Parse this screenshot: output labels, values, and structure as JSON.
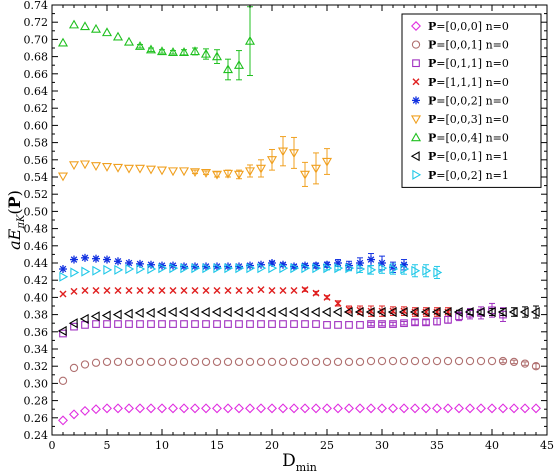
{
  "chart_data": {
    "type": "scatter",
    "title": "",
    "xlabel": "D",
    "xlabel_sub": "min",
    "ylabel_parts": [
      "aE",
      "πK",
      "(",
      "P",
      ")"
    ],
    "xlim": [
      0,
      45
    ],
    "ylim": [
      0.24,
      0.74
    ],
    "xticks": [
      0,
      5,
      10,
      15,
      20,
      25,
      30,
      35,
      40,
      45
    ],
    "yticks": [
      0.24,
      0.26,
      0.28,
      0.3,
      0.32,
      0.34,
      0.36,
      0.38,
      0.4,
      0.42,
      0.44,
      0.46,
      0.48,
      0.5,
      0.52,
      0.54,
      0.56,
      0.58,
      0.6,
      0.62,
      0.64,
      0.66,
      0.68,
      0.7,
      0.72,
      0.74
    ],
    "ytick_labels": [
      "0.24",
      "0.26",
      "0.28",
      "0.30",
      "0.32",
      "0.34",
      "0.36",
      "0.38",
      "0.40",
      "0.42",
      "0.44",
      "0.46",
      "0.48",
      "0.50",
      "0.52",
      "0.54",
      "0.56",
      "0.58",
      "0.60",
      "0.62",
      "0.64",
      "0.66",
      "0.68",
      "0.70",
      "0.72",
      "0.74"
    ],
    "grid": false,
    "legend_position": "top-right",
    "series": [
      {
        "legend_bold": "P",
        "legend_rest": "=[0,0,0] n=0",
        "marker": "diamond",
        "color": "#e030e0",
        "x": [
          1,
          2,
          3,
          4,
          5,
          6,
          7,
          8,
          9,
          10,
          11,
          12,
          13,
          14,
          15,
          16,
          17,
          18,
          19,
          20,
          21,
          22,
          23,
          24,
          25,
          26,
          27,
          28,
          29,
          30,
          31,
          32,
          33,
          34,
          35,
          36,
          37,
          38,
          39,
          40,
          41,
          42,
          43,
          44
        ],
        "y": [
          0.257,
          0.264,
          0.268,
          0.27,
          0.271,
          0.271,
          0.271,
          0.271,
          0.271,
          0.271,
          0.271,
          0.271,
          0.271,
          0.271,
          0.271,
          0.271,
          0.271,
          0.271,
          0.271,
          0.271,
          0.271,
          0.271,
          0.271,
          0.271,
          0.271,
          0.271,
          0.271,
          0.271,
          0.271,
          0.271,
          0.271,
          0.271,
          0.271,
          0.271,
          0.271,
          0.271,
          0.271,
          0.271,
          0.271,
          0.271,
          0.271,
          0.271,
          0.271,
          0.271
        ],
        "err": [
          0.001,
          0.001,
          0.001,
          0.001,
          0.001,
          0.001,
          0.001,
          0.001,
          0.001,
          0.001,
          0.001,
          0.001,
          0.001,
          0.001,
          0.001,
          0.001,
          0.001,
          0.001,
          0.001,
          0.001,
          0.001,
          0.001,
          0.001,
          0.001,
          0.001,
          0.001,
          0.001,
          0.001,
          0.001,
          0.001,
          0.001,
          0.001,
          0.001,
          0.001,
          0.001,
          0.001,
          0.001,
          0.001,
          0.001,
          0.001,
          0.001,
          0.001,
          0.001,
          0.001
        ]
      },
      {
        "legend_bold": "P",
        "legend_rest": "=[0,0,1] n=0",
        "marker": "circle",
        "color": "#b07070",
        "x": [
          1,
          2,
          3,
          4,
          5,
          6,
          7,
          8,
          9,
          10,
          11,
          12,
          13,
          14,
          15,
          16,
          17,
          18,
          19,
          20,
          21,
          22,
          23,
          24,
          25,
          26,
          27,
          28,
          29,
          30,
          31,
          32,
          33,
          34,
          35,
          36,
          37,
          38,
          39,
          40,
          41,
          42,
          43,
          44
        ],
        "y": [
          0.303,
          0.318,
          0.322,
          0.324,
          0.325,
          0.325,
          0.325,
          0.325,
          0.325,
          0.325,
          0.325,
          0.325,
          0.325,
          0.325,
          0.325,
          0.325,
          0.325,
          0.325,
          0.325,
          0.325,
          0.325,
          0.325,
          0.325,
          0.325,
          0.325,
          0.325,
          0.325,
          0.325,
          0.326,
          0.326,
          0.326,
          0.326,
          0.326,
          0.326,
          0.326,
          0.326,
          0.326,
          0.326,
          0.326,
          0.326,
          0.326,
          0.325,
          0.323,
          0.32
        ],
        "err": [
          0.001,
          0.001,
          0.001,
          0.001,
          0.001,
          0.001,
          0.001,
          0.001,
          0.001,
          0.001,
          0.001,
          0.001,
          0.001,
          0.001,
          0.001,
          0.001,
          0.001,
          0.001,
          0.001,
          0.001,
          0.001,
          0.001,
          0.001,
          0.001,
          0.001,
          0.001,
          0.001,
          0.001,
          0.001,
          0.001,
          0.001,
          0.001,
          0.001,
          0.001,
          0.001,
          0.001,
          0.001,
          0.001,
          0.001,
          0.001,
          0.002,
          0.002,
          0.002,
          0.003
        ]
      },
      {
        "legend_bold": "P",
        "legend_rest": "=[0,1,1] n=0",
        "marker": "square",
        "color": "#a030c0",
        "x": [
          1,
          2,
          3,
          4,
          5,
          6,
          7,
          8,
          9,
          10,
          11,
          12,
          13,
          14,
          15,
          16,
          17,
          18,
          19,
          20,
          21,
          22,
          23,
          24,
          25,
          26,
          27,
          28,
          29,
          30,
          31,
          32,
          33,
          34,
          35,
          36,
          37,
          38,
          39,
          40,
          41
        ],
        "y": [
          0.358,
          0.366,
          0.368,
          0.369,
          0.369,
          0.369,
          0.369,
          0.369,
          0.369,
          0.369,
          0.369,
          0.369,
          0.369,
          0.369,
          0.369,
          0.369,
          0.369,
          0.369,
          0.369,
          0.369,
          0.369,
          0.369,
          0.369,
          0.369,
          0.368,
          0.368,
          0.368,
          0.368,
          0.369,
          0.369,
          0.369,
          0.37,
          0.371,
          0.371,
          0.372,
          0.374,
          0.378,
          0.381,
          0.382,
          0.385,
          0.38
        ],
        "err": [
          0.001,
          0.001,
          0.001,
          0.001,
          0.001,
          0.001,
          0.001,
          0.001,
          0.001,
          0.001,
          0.001,
          0.001,
          0.001,
          0.001,
          0.001,
          0.001,
          0.001,
          0.001,
          0.001,
          0.001,
          0.001,
          0.001,
          0.001,
          0.001,
          0.001,
          0.001,
          0.001,
          0.001,
          0.002,
          0.002,
          0.002,
          0.002,
          0.003,
          0.003,
          0.004,
          0.004,
          0.005,
          0.006,
          0.007,
          0.008,
          0.008
        ]
      },
      {
        "legend_bold": "P",
        "legend_rest": "=[1,1,1] n=0",
        "marker": "cross",
        "color": "#e02020",
        "x": [
          1,
          2,
          3,
          4,
          5,
          6,
          7,
          8,
          9,
          10,
          11,
          12,
          13,
          14,
          15,
          16,
          17,
          18,
          19,
          20,
          21,
          22,
          23,
          24,
          25,
          26,
          27,
          28,
          29,
          30,
          31,
          32,
          33,
          34,
          35,
          36
        ],
        "y": [
          0.404,
          0.407,
          0.408,
          0.408,
          0.408,
          0.408,
          0.408,
          0.408,
          0.408,
          0.408,
          0.408,
          0.408,
          0.408,
          0.408,
          0.408,
          0.408,
          0.408,
          0.408,
          0.409,
          0.408,
          0.408,
          0.408,
          0.409,
          0.405,
          0.4,
          0.393,
          0.386,
          0.385,
          0.384,
          0.384,
          0.384,
          0.384,
          0.383,
          0.383,
          0.383,
          0.383
        ],
        "err": [
          0.001,
          0.001,
          0.001,
          0.001,
          0.001,
          0.001,
          0.001,
          0.001,
          0.001,
          0.001,
          0.001,
          0.001,
          0.001,
          0.001,
          0.001,
          0.001,
          0.001,
          0.001,
          0.001,
          0.001,
          0.001,
          0.001,
          0.002,
          0.002,
          0.002,
          0.003,
          0.004,
          0.005,
          0.006,
          0.006,
          0.005,
          0.005,
          0.005,
          0.005,
          0.005,
          0.005
        ]
      },
      {
        "legend_bold": "P",
        "legend_rest": "=[0,0,2] n=0",
        "marker": "star",
        "color": "#1030e0",
        "x": [
          1,
          2,
          3,
          4,
          5,
          6,
          7,
          8,
          9,
          10,
          11,
          12,
          13,
          14,
          15,
          16,
          17,
          18,
          19,
          20,
          21,
          22,
          23,
          24,
          25,
          26,
          27,
          28,
          29,
          30,
          31,
          32
        ],
        "y": [
          0.433,
          0.444,
          0.446,
          0.445,
          0.444,
          0.442,
          0.44,
          0.439,
          0.438,
          0.437,
          0.437,
          0.436,
          0.436,
          0.436,
          0.436,
          0.436,
          0.436,
          0.437,
          0.438,
          0.44,
          0.438,
          0.436,
          0.437,
          0.437,
          0.438,
          0.44,
          0.437,
          0.44,
          0.444,
          0.44,
          0.435,
          0.438
        ],
        "err": [
          0.001,
          0.001,
          0.001,
          0.001,
          0.001,
          0.001,
          0.001,
          0.001,
          0.001,
          0.001,
          0.001,
          0.001,
          0.001,
          0.001,
          0.001,
          0.001,
          0.001,
          0.001,
          0.001,
          0.002,
          0.002,
          0.002,
          0.002,
          0.003,
          0.003,
          0.004,
          0.005,
          0.006,
          0.007,
          0.008,
          0.006,
          0.006
        ]
      },
      {
        "legend_bold": "P",
        "legend_rest": "=[0,0,3] n=0",
        "marker": "triangle-down",
        "color": "#f0a020",
        "x": [
          1,
          2,
          3,
          4,
          5,
          6,
          7,
          8,
          9,
          10,
          11,
          12,
          13,
          14,
          15,
          16,
          17,
          18,
          19,
          20,
          21,
          22,
          23,
          24,
          25
        ],
        "y": [
          0.541,
          0.554,
          0.555,
          0.553,
          0.552,
          0.551,
          0.55,
          0.55,
          0.549,
          0.548,
          0.547,
          0.547,
          0.546,
          0.545,
          0.543,
          0.544,
          0.543,
          0.547,
          0.55,
          0.56,
          0.57,
          0.568,
          0.543,
          0.55,
          0.558
        ],
        "err": [
          0.001,
          0.001,
          0.001,
          0.001,
          0.001,
          0.001,
          0.001,
          0.001,
          0.001,
          0.001,
          0.001,
          0.001,
          0.002,
          0.002,
          0.003,
          0.004,
          0.005,
          0.007,
          0.01,
          0.012,
          0.017,
          0.018,
          0.014,
          0.018,
          0.015
        ]
      },
      {
        "legend_bold": "P",
        "legend_rest": "=[0,0,4] n=0",
        "marker": "triangle-up",
        "color": "#20c020",
        "x": [
          1,
          2,
          3,
          4,
          5,
          6,
          7,
          8,
          9,
          10,
          11,
          12,
          13,
          14,
          15,
          16,
          17,
          18
        ],
        "y": [
          0.696,
          0.717,
          0.715,
          0.712,
          0.708,
          0.703,
          0.697,
          0.692,
          0.688,
          0.686,
          0.685,
          0.685,
          0.686,
          0.683,
          0.68,
          0.665,
          0.67,
          0.698
        ],
        "err": [
          0.001,
          0.001,
          0.001,
          0.001,
          0.001,
          0.001,
          0.001,
          0.002,
          0.002,
          0.002,
          0.002,
          0.003,
          0.004,
          0.006,
          0.008,
          0.012,
          0.017,
          0.04
        ]
      },
      {
        "legend_bold": "P",
        "legend_rest": "=[0,0,1] n=1",
        "marker": "triangle-left",
        "color": "#000000",
        "x": [
          1,
          2,
          3,
          4,
          5,
          6,
          7,
          8,
          9,
          10,
          11,
          12,
          13,
          14,
          15,
          16,
          17,
          18,
          19,
          20,
          21,
          22,
          23,
          24,
          25,
          26,
          27,
          28,
          29,
          30,
          31,
          32,
          33,
          34,
          35,
          36,
          37,
          38,
          39,
          40,
          41,
          42,
          43,
          44
        ],
        "y": [
          0.361,
          0.37,
          0.375,
          0.378,
          0.379,
          0.38,
          0.381,
          0.382,
          0.382,
          0.383,
          0.383,
          0.383,
          0.383,
          0.383,
          0.383,
          0.383,
          0.383,
          0.383,
          0.383,
          0.383,
          0.383,
          0.383,
          0.383,
          0.383,
          0.383,
          0.383,
          0.383,
          0.383,
          0.383,
          0.383,
          0.383,
          0.383,
          0.383,
          0.383,
          0.383,
          0.383,
          0.383,
          0.383,
          0.383,
          0.383,
          0.383,
          0.383,
          0.383,
          0.383
        ],
        "err": [
          0.001,
          0.001,
          0.001,
          0.001,
          0.001,
          0.001,
          0.001,
          0.001,
          0.001,
          0.001,
          0.001,
          0.001,
          0.001,
          0.001,
          0.001,
          0.001,
          0.001,
          0.001,
          0.001,
          0.001,
          0.001,
          0.001,
          0.001,
          0.001,
          0.001,
          0.001,
          0.001,
          0.001,
          0.001,
          0.001,
          0.001,
          0.001,
          0.001,
          0.001,
          0.002,
          0.002,
          0.002,
          0.003,
          0.003,
          0.004,
          0.004,
          0.005,
          0.006,
          0.007
        ]
      },
      {
        "legend_bold": "P",
        "legend_rest": "=[0,0,2] n=1",
        "marker": "triangle-right",
        "color": "#20c8e8",
        "x": [
          1,
          2,
          3,
          4,
          5,
          6,
          7,
          8,
          9,
          10,
          11,
          12,
          13,
          14,
          15,
          16,
          17,
          18,
          19,
          20,
          21,
          22,
          23,
          24,
          25,
          26,
          27,
          28,
          29,
          30,
          31,
          32,
          33,
          34,
          35
        ],
        "y": [
          0.424,
          0.429,
          0.43,
          0.431,
          0.432,
          0.432,
          0.433,
          0.433,
          0.433,
          0.434,
          0.434,
          0.434,
          0.434,
          0.434,
          0.434,
          0.434,
          0.434,
          0.434,
          0.434,
          0.434,
          0.434,
          0.434,
          0.434,
          0.434,
          0.434,
          0.434,
          0.434,
          0.433,
          0.432,
          0.434,
          0.433,
          0.433,
          0.431,
          0.431,
          0.429
        ],
        "err": [
          0.001,
          0.001,
          0.001,
          0.001,
          0.001,
          0.001,
          0.001,
          0.001,
          0.001,
          0.001,
          0.001,
          0.001,
          0.001,
          0.001,
          0.001,
          0.001,
          0.001,
          0.001,
          0.001,
          0.001,
          0.001,
          0.001,
          0.001,
          0.001,
          0.002,
          0.002,
          0.003,
          0.004,
          0.005,
          0.006,
          0.006,
          0.006,
          0.007,
          0.007,
          0.007
        ]
      }
    ]
  }
}
